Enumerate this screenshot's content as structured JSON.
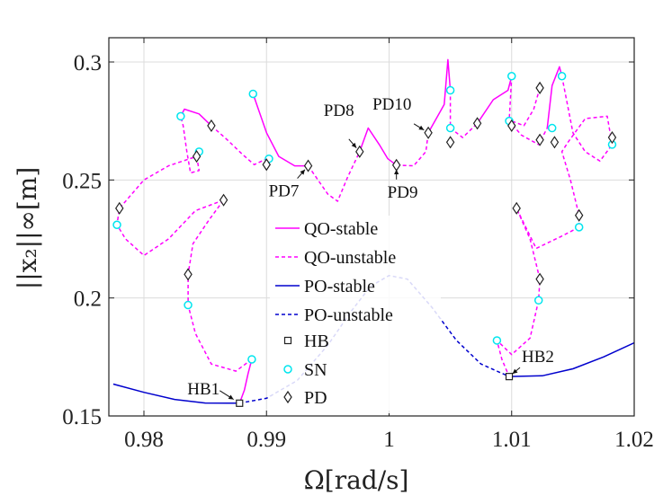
{
  "chart_data": {
    "type": "line",
    "title": "",
    "xlabel": "Ω[rad/s]",
    "ylabel": "||x₂||∞[m]",
    "xlim": [
      0.9775,
      1.02
    ],
    "ylim": [
      0.15,
      0.31
    ],
    "xticks": [
      0.98,
      0.99,
      1.0,
      1.01,
      1.02
    ],
    "xtick_labels": [
      "0.98",
      "0.99",
      "1",
      "1.01",
      "1.02"
    ],
    "yticks": [
      0.15,
      0.2,
      0.25,
      0.3
    ],
    "ytick_labels": [
      "0.15",
      "0.2",
      "0.25",
      "0.3"
    ],
    "grid": true,
    "legend_position": "center",
    "colors": {
      "qo": "#ff00ff",
      "po": "#0000cd",
      "sn": "#00e5ee",
      "marker": "#222222"
    },
    "series": [
      {
        "name": "QO-stable",
        "style": "solid",
        "color": "#ff00ff",
        "segments": [
          [
            [
              0.9878,
              0.1554
            ],
            [
              0.9882,
              0.161
            ],
            [
              0.9885,
              0.168
            ],
            [
              0.9888,
              0.174
            ]
          ],
          [
            [
              0.983,
              0.277
            ],
            [
              0.9833,
              0.28
            ],
            [
              0.9845,
              0.278
            ],
            [
              0.9855,
              0.273
            ]
          ],
          [
            [
              0.9889,
              0.2865
            ],
            [
              0.99,
              0.27
            ],
            [
              0.991,
              0.26
            ],
            [
              0.9923,
              0.256
            ],
            [
              0.9934,
              0.256
            ]
          ],
          [
            [
              0.9976,
              0.262
            ],
            [
              0.9983,
              0.272
            ],
            [
              0.9992,
              0.265
            ],
            [
              0.9999,
              0.259
            ],
            [
              1.0006,
              0.2563
            ]
          ],
          [
            [
              1.0032,
              0.27
            ],
            [
              1.0045,
              0.282
            ],
            [
              1.0048,
              0.301
            ],
            [
              1.005,
              0.288
            ]
          ],
          [
            [
              1.0072,
              0.274
            ],
            [
              1.0085,
              0.284
            ],
            [
              1.0097,
              0.288
            ],
            [
              1.01,
              0.294
            ]
          ],
          [
            [
              1.0129,
              0.272
            ],
            [
              1.0133,
              0.29
            ],
            [
              1.0139,
              0.298
            ],
            [
              1.0141,
              0.294
            ]
          ]
        ]
      },
      {
        "name": "QO-unstable",
        "style": "dashed",
        "color": "#ff00ff",
        "segments": [
          [
            [
              0.9888,
              0.174
            ],
            [
              0.9875,
              0.169
            ],
            [
              0.9855,
              0.172
            ],
            [
              0.9842,
              0.185
            ],
            [
              0.9836,
              0.197
            ],
            [
              0.9836,
              0.21
            ],
            [
              0.984,
              0.223
            ],
            [
              0.9853,
              0.233
            ],
            [
              0.9865,
              0.2415
            ]
          ],
          [
            [
              0.9865,
              0.2415
            ],
            [
              0.9842,
              0.237
            ],
            [
              0.982,
              0.225
            ],
            [
              0.98,
              0.218
            ],
            [
              0.9785,
              0.225
            ],
            [
              0.9778,
              0.231
            ],
            [
              0.978,
              0.238
            ],
            [
              0.98,
              0.25
            ],
            [
              0.982,
              0.256
            ],
            [
              0.9843,
              0.26
            ]
          ],
          [
            [
              0.9843,
              0.26
            ],
            [
              0.9845,
              0.254
            ],
            [
              0.9838,
              0.253
            ],
            [
              0.9835,
              0.262
            ],
            [
              0.9832,
              0.273
            ],
            [
              0.983,
              0.277
            ]
          ],
          [
            [
              0.9855,
              0.273
            ],
            [
              0.9868,
              0.267
            ],
            [
              0.988,
              0.261
            ],
            [
              0.989,
              0.2565
            ],
            [
              0.99,
              0.259
            ]
          ],
          [
            [
              0.9934,
              0.256
            ],
            [
              0.995,
              0.244
            ],
            [
              0.9958,
              0.241
            ],
            [
              0.9966,
              0.251
            ],
            [
              0.9976,
              0.262
            ]
          ],
          [
            [
              1.0006,
              0.2563
            ],
            [
              1.002,
              0.256
            ],
            [
              1.003,
              0.262
            ],
            [
              1.0032,
              0.27
            ]
          ],
          [
            [
              1.005,
              0.288
            ],
            [
              1.005,
              0.272
            ],
            [
              1.006,
              0.268
            ],
            [
              1.0072,
              0.274
            ]
          ],
          [
            [
              1.01,
              0.294
            ],
            [
              1.0098,
              0.275
            ],
            [
              1.0108,
              0.269
            ],
            [
              1.0122,
              0.265
            ],
            [
              1.0129,
              0.272
            ]
          ],
          [
            [
              1.0141,
              0.294
            ],
            [
              1.015,
              0.27
            ],
            [
              1.016,
              0.262
            ],
            [
              1.0172,
              0.258
            ],
            [
              1.0182,
              0.265
            ],
            [
              1.0178,
              0.277
            ],
            [
              1.016,
              0.276
            ],
            [
              1.0146,
              0.266
            ],
            [
              1.0141,
              0.262
            ],
            [
              1.0148,
              0.25
            ],
            [
              1.0155,
              0.235
            ],
            [
              1.0155,
              0.23
            ]
          ],
          [
            [
              1.0155,
              0.23
            ],
            [
              1.014,
              0.226
            ],
            [
              1.012,
              0.221
            ],
            [
              1.0104,
              0.238
            ],
            [
              1.0115,
              0.225
            ],
            [
              1.0123,
              0.208
            ],
            [
              1.0122,
              0.199
            ],
            [
              1.0115,
              0.183
            ],
            [
              1.01,
              0.176
            ],
            [
              1.0088,
              0.182
            ],
            [
              1.0092,
              0.174
            ],
            [
              1.0098,
              0.1667
            ]
          ],
          [
            [
              1.0123,
              0.289
            ],
            [
              1.0118,
              0.28
            ],
            [
              1.011,
              0.273
            ],
            [
              1.01,
              0.275
            ]
          ]
        ]
      },
      {
        "name": "PO-stable",
        "style": "solid",
        "color": "#0000cd",
        "segments": [
          [
            [
              0.9775,
              0.1635
            ],
            [
              0.98,
              0.16
            ],
            [
              0.9825,
              0.157
            ],
            [
              0.985,
              0.1555
            ],
            [
              0.9878,
              0.1554
            ]
          ],
          [
            [
              1.0098,
              0.1667
            ],
            [
              1.0125,
              0.167
            ],
            [
              1.015,
              0.17
            ],
            [
              1.0175,
              0.175
            ],
            [
              1.02,
              0.181
            ]
          ]
        ]
      },
      {
        "name": "PO-unstable",
        "style": "dashed",
        "color": "#0000cd",
        "segments": [
          [
            [
              0.9878,
              0.1554
            ],
            [
              0.99,
              0.1575
            ],
            [
              0.9925,
              0.165
            ],
            [
              0.995,
              0.18
            ],
            [
              0.997,
              0.195
            ],
            [
              0.9985,
              0.205
            ],
            [
              1.0,
              0.2095
            ],
            [
              1.0015,
              0.208
            ],
            [
              1.0035,
              0.196
            ],
            [
              1.0055,
              0.182
            ],
            [
              1.0075,
              0.172
            ],
            [
              1.0098,
              0.1667
            ]
          ]
        ]
      }
    ],
    "markers": {
      "HB": [
        [
          0.9878,
          0.1554
        ],
        [
          1.0098,
          0.1667
        ]
      ],
      "SN": [
        [
          0.9888,
          0.174
        ],
        [
          0.9836,
          0.197
        ],
        [
          0.9778,
          0.231
        ],
        [
          0.9845,
          0.262
        ],
        [
          0.983,
          0.277
        ],
        [
          0.9889,
          0.2865
        ],
        [
          0.9902,
          0.259
        ],
        [
          1.005,
          0.288
        ],
        [
          1.005,
          0.272
        ],
        [
          1.01,
          0.294
        ],
        [
          1.0098,
          0.275
        ],
        [
          1.0141,
          0.294
        ],
        [
          1.0133,
          0.272
        ],
        [
          1.0182,
          0.265
        ],
        [
          1.0155,
          0.23
        ],
        [
          1.0122,
          0.199
        ],
        [
          1.0088,
          0.182
        ]
      ],
      "PD": [
        [
          0.9865,
          0.2415
        ],
        [
          0.9836,
          0.21
        ],
        [
          0.978,
          0.238
        ],
        [
          0.9843,
          0.26
        ],
        [
          0.9855,
          0.273
        ],
        [
          0.99,
          0.2565
        ],
        [
          0.9934,
          0.256
        ],
        [
          0.9976,
          0.262
        ],
        [
          1.0006,
          0.2563
        ],
        [
          1.0032,
          0.27
        ],
        [
          1.005,
          0.266
        ],
        [
          1.0072,
          0.274
        ],
        [
          1.01,
          0.273
        ],
        [
          1.0123,
          0.289
        ],
        [
          1.0123,
          0.267
        ],
        [
          1.0135,
          0.266
        ],
        [
          1.0182,
          0.268
        ],
        [
          1.0155,
          0.235
        ],
        [
          1.0104,
          0.238
        ],
        [
          1.0123,
          0.208
        ]
      ]
    },
    "annotations": [
      {
        "text": "HB1",
        "point": [
          0.9878,
          0.1554
        ]
      },
      {
        "text": "HB2",
        "point": [
          1.0098,
          0.1667
        ]
      },
      {
        "text": "PD7",
        "point": [
          0.9934,
          0.256
        ]
      },
      {
        "text": "PD8",
        "point": [
          0.9976,
          0.262
        ]
      },
      {
        "text": "PD9",
        "point": [
          1.0006,
          0.2563
        ]
      },
      {
        "text": "PD10",
        "point": [
          1.0032,
          0.27
        ]
      }
    ]
  }
}
